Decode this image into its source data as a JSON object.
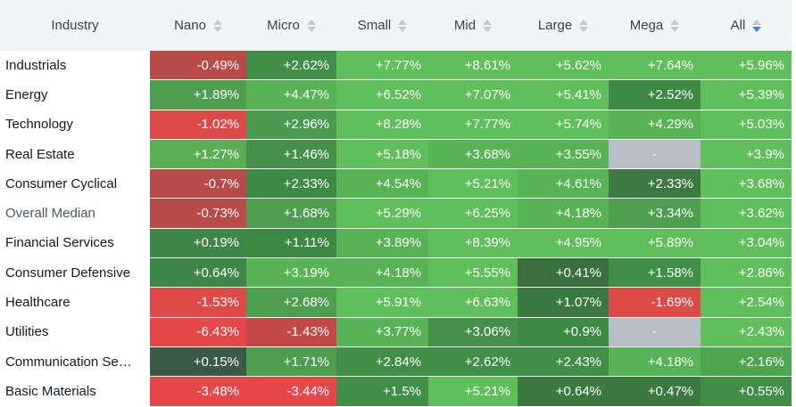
{
  "columns": [
    {
      "label": "Industry",
      "sortable": false
    },
    {
      "label": "Nano",
      "sortable": true,
      "active": false
    },
    {
      "label": "Micro",
      "sortable": true,
      "active": false
    },
    {
      "label": "Small",
      "sortable": true,
      "active": false
    },
    {
      "label": "Mid",
      "sortable": true,
      "active": false
    },
    {
      "label": "Large",
      "sortable": true,
      "active": false
    },
    {
      "label": "Mega",
      "sortable": true,
      "active": false
    },
    {
      "label": "All",
      "sortable": true,
      "active": true
    }
  ],
  "rows": [
    {
      "industry": "Industrials",
      "values": [
        "-0.49%",
        "+2.62%",
        "+7.77%",
        "+8.61%",
        "+5.62%",
        "+7.64%",
        "+5.96%"
      ],
      "colors": [
        "#b84a47",
        "#3f8f47",
        "#5ebf5b",
        "#5ebf5b",
        "#5ebf5b",
        "#5ebf5b",
        "#5ebf5b"
      ]
    },
    {
      "industry": "Energy",
      "values": [
        "+1.89%",
        "+4.47%",
        "+6.52%",
        "+7.07%",
        "+5.41%",
        "+2.52%",
        "+5.39%"
      ],
      "colors": [
        "#4e9e50",
        "#56b356",
        "#5ebf5b",
        "#5ebf5b",
        "#5ebf5b",
        "#3d8a45",
        "#5ebf5b"
      ]
    },
    {
      "industry": "Technology",
      "values": [
        "-1.02%",
        "+2.96%",
        "+8.28%",
        "+7.77%",
        "+5.74%",
        "+4.29%",
        "+5.03%"
      ],
      "colors": [
        "#dc4b48",
        "#4a9a4f",
        "#5ebf5b",
        "#5ebf5b",
        "#5ebf5b",
        "#56b356",
        "#5ebf5b"
      ]
    },
    {
      "industry": "Real Estate",
      "values": [
        "+1.27%",
        "+1.46%",
        "+5.18%",
        "+3.68%",
        "+3.55%",
        "-",
        "+3.9%"
      ],
      "colors": [
        "#5aaf55",
        "#47904b",
        "#5ebf5b",
        "#56b356",
        "#56b356",
        "#b9bdc6",
        "#5ebf5b"
      ]
    },
    {
      "industry": "Consumer Cyclical",
      "values": [
        "-0.7%",
        "+2.33%",
        "+4.54%",
        "+5.21%",
        "+4.61%",
        "+2.33%",
        "+3.68%"
      ],
      "colors": [
        "#b84a47",
        "#3d8a45",
        "#56b356",
        "#5ebf5b",
        "#56b356",
        "#3d7a43",
        "#5ebf5b"
      ]
    },
    {
      "industry": "Overall Median",
      "values": [
        "-0.73%",
        "+1.68%",
        "+5.29%",
        "+6.25%",
        "+4.18%",
        "+3.34%",
        "+3.62%"
      ],
      "colors": [
        "#b84a47",
        "#4e9e50",
        "#5ebf5b",
        "#5ebf5b",
        "#56b356",
        "#4e9e50",
        "#5ebf5b"
      ]
    },
    {
      "industry": "Financial Services",
      "values": [
        "+0.19%",
        "+1.11%",
        "+3.89%",
        "+8.39%",
        "+4.95%",
        "+5.89%",
        "+3.04%"
      ],
      "colors": [
        "#3f8746",
        "#3d8a45",
        "#56b356",
        "#5ebf5b",
        "#5ebf5b",
        "#5ebf5b",
        "#5ebf5b"
      ]
    },
    {
      "industry": "Consumer Defensive",
      "values": [
        "+0.64%",
        "+3.19%",
        "+4.18%",
        "+5.55%",
        "+0.41%",
        "+1.58%",
        "+2.86%"
      ],
      "colors": [
        "#3f8746",
        "#56b356",
        "#56b356",
        "#5ebf5b",
        "#3a6f40",
        "#3f8f47",
        "#5ebf5b"
      ]
    },
    {
      "industry": "Healthcare",
      "values": [
        "-1.53%",
        "+2.68%",
        "+5.91%",
        "+6.63%",
        "+1.07%",
        "-1.69%",
        "+2.54%"
      ],
      "colors": [
        "#dc4b48",
        "#4e9e50",
        "#5ebf5b",
        "#5ebf5b",
        "#3a7a41",
        "#dc4b48",
        "#5ebf5b"
      ]
    },
    {
      "industry": "Utilities",
      "values": [
        "-6.43%",
        "-1.43%",
        "+3.77%",
        "+3.06%",
        "+0.9%",
        "-",
        "+2.43%"
      ],
      "colors": [
        "#e6484a",
        "#c44846",
        "#56b356",
        "#47904b",
        "#3d8a45",
        "#b9bdc6",
        "#5ebf5b"
      ]
    },
    {
      "industry": "Communication Se…",
      "values": [
        "+0.15%",
        "+1.71%",
        "+2.84%",
        "+2.62%",
        "+2.43%",
        "+4.18%",
        "+2.16%"
      ],
      "colors": [
        "#3a5a45",
        "#4e9e50",
        "#3f8f47",
        "#3f8f47",
        "#3f8f47",
        "#56b356",
        "#4ea650"
      ]
    },
    {
      "industry": "Basic Materials",
      "values": [
        "-3.48%",
        "-3.44%",
        "+1.5%",
        "+5.21%",
        "+0.64%",
        "+0.47%",
        "+0.55%"
      ],
      "colors": [
        "#e6484a",
        "#e6484a",
        "#3f8f47",
        "#5ebf5b",
        "#3a7a41",
        "#3a7a41",
        "#3f8f47"
      ]
    }
  ]
}
